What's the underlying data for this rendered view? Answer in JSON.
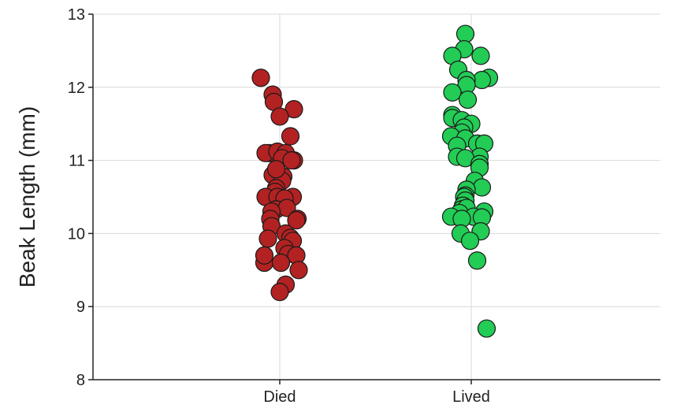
{
  "chart_data": {
    "type": "scatter",
    "title": "",
    "xlabel": "",
    "ylabel": "Beak Length (mm)",
    "categories": [
      "Died",
      "Lived"
    ],
    "ylim": [
      8,
      13
    ],
    "yticks": [
      "8",
      "9",
      "10",
      "11",
      "12",
      "13"
    ],
    "grid": true,
    "legend": "none",
    "series": [
      {
        "category": "Died",
        "color": "#b22222",
        "points": [
          {
            "x": -0.16,
            "y": 12.13
          },
          {
            "x": -0.06,
            "y": 11.9
          },
          {
            "x": -0.05,
            "y": 11.8
          },
          {
            "x": 0.12,
            "y": 11.7
          },
          {
            "x": 0.0,
            "y": 11.6
          },
          {
            "x": 0.09,
            "y": 11.33
          },
          {
            "x": -0.09,
            "y": 11.1
          },
          {
            "x": -0.12,
            "y": 11.1
          },
          {
            "x": -0.02,
            "y": 11.12
          },
          {
            "x": 0.05,
            "y": 11.1
          },
          {
            "x": 0.02,
            "y": 11.03
          },
          {
            "x": 0.12,
            "y": 11.0
          },
          {
            "x": 0.1,
            "y": 11.0
          },
          {
            "x": -0.06,
            "y": 10.8
          },
          {
            "x": 0.03,
            "y": 10.78
          },
          {
            "x": 0.02,
            "y": 10.72
          },
          {
            "x": -0.03,
            "y": 10.88
          },
          {
            "x": -0.03,
            "y": 10.62
          },
          {
            "x": -0.04,
            "y": 10.57
          },
          {
            "x": -0.12,
            "y": 10.5
          },
          {
            "x": 0.11,
            "y": 10.5
          },
          {
            "x": 0.04,
            "y": 10.45
          },
          {
            "x": -0.02,
            "y": 10.5
          },
          {
            "x": 0.04,
            "y": 10.48
          },
          {
            "x": -0.03,
            "y": 10.33
          },
          {
            "x": 0.06,
            "y": 10.35
          },
          {
            "x": -0.07,
            "y": 10.3
          },
          {
            "x": -0.08,
            "y": 10.2
          },
          {
            "x": 0.15,
            "y": 10.2
          },
          {
            "x": 0.14,
            "y": 10.18
          },
          {
            "x": -0.07,
            "y": 10.1
          },
          {
            "x": 0.05,
            "y": 10.0
          },
          {
            "x": 0.09,
            "y": 9.94
          },
          {
            "x": -0.1,
            "y": 9.93
          },
          {
            "x": 0.11,
            "y": 9.9
          },
          {
            "x": 0.04,
            "y": 9.8
          },
          {
            "x": 0.07,
            "y": 9.72
          },
          {
            "x": 0.14,
            "y": 9.7
          },
          {
            "x": -0.13,
            "y": 9.6
          },
          {
            "x": -0.13,
            "y": 9.7
          },
          {
            "x": 0.01,
            "y": 9.6
          },
          {
            "x": 0.16,
            "y": 9.5
          },
          {
            "x": 0.05,
            "y": 9.3
          },
          {
            "x": 0.0,
            "y": 9.2
          }
        ]
      },
      {
        "category": "Lived",
        "color": "#22cc55",
        "points": [
          {
            "x": -0.05,
            "y": 12.73
          },
          {
            "x": -0.06,
            "y": 12.52
          },
          {
            "x": -0.16,
            "y": 12.43
          },
          {
            "x": 0.08,
            "y": 12.43
          },
          {
            "x": -0.11,
            "y": 12.24
          },
          {
            "x": 0.15,
            "y": 12.13
          },
          {
            "x": 0.09,
            "y": 12.1
          },
          {
            "x": -0.04,
            "y": 12.1
          },
          {
            "x": -0.04,
            "y": 12.03
          },
          {
            "x": -0.16,
            "y": 11.93
          },
          {
            "x": -0.03,
            "y": 11.83
          },
          {
            "x": -0.16,
            "y": 11.62
          },
          {
            "x": -0.16,
            "y": 11.58
          },
          {
            "x": -0.08,
            "y": 11.55
          },
          {
            "x": 0.0,
            "y": 11.5
          },
          {
            "x": -0.06,
            "y": 11.45
          },
          {
            "x": -0.08,
            "y": 11.38
          },
          {
            "x": -0.17,
            "y": 11.33
          },
          {
            "x": -0.05,
            "y": 11.3
          },
          {
            "x": 0.05,
            "y": 11.23
          },
          {
            "x": 0.11,
            "y": 11.23
          },
          {
            "x": -0.12,
            "y": 11.2
          },
          {
            "x": 0.07,
            "y": 11.05
          },
          {
            "x": -0.12,
            "y": 11.05
          },
          {
            "x": -0.05,
            "y": 11.03
          },
          {
            "x": 0.07,
            "y": 10.95
          },
          {
            "x": 0.07,
            "y": 10.9
          },
          {
            "x": 0.03,
            "y": 10.72
          },
          {
            "x": 0.09,
            "y": 10.63
          },
          {
            "x": -0.04,
            "y": 10.6
          },
          {
            "x": -0.05,
            "y": 10.52
          },
          {
            "x": -0.06,
            "y": 10.5
          },
          {
            "x": -0.05,
            "y": 10.45
          },
          {
            "x": -0.07,
            "y": 10.38
          },
          {
            "x": -0.08,
            "y": 10.33
          },
          {
            "x": -0.04,
            "y": 10.35
          },
          {
            "x": 0.11,
            "y": 10.3
          },
          {
            "x": -0.1,
            "y": 10.28
          },
          {
            "x": -0.17,
            "y": 10.23
          },
          {
            "x": 0.02,
            "y": 10.23
          },
          {
            "x": 0.09,
            "y": 10.22
          },
          {
            "x": -0.08,
            "y": 10.2
          },
          {
            "x": 0.08,
            "y": 10.03
          },
          {
            "x": -0.09,
            "y": 10.0
          },
          {
            "x": -0.01,
            "y": 9.9
          },
          {
            "x": 0.05,
            "y": 9.63
          },
          {
            "x": 0.13,
            "y": 8.7
          }
        ]
      }
    ]
  }
}
